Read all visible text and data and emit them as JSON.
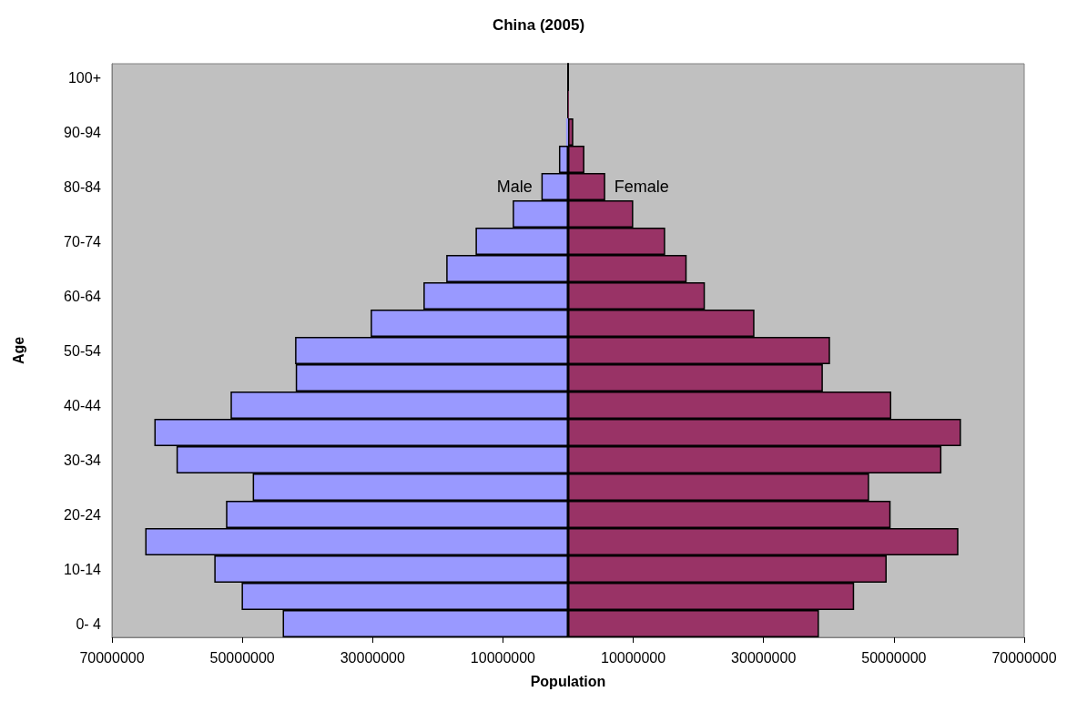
{
  "chart_data": {
    "type": "bar",
    "orientation": "horizontal",
    "title": "China (2005)",
    "xlabel": "Population",
    "ylabel": "Age",
    "categories": [
      "100+",
      null,
      "90-94",
      null,
      "80-84",
      null,
      "70-74",
      null,
      "60-64",
      null,
      "50-54",
      null,
      "40-44",
      null,
      "30-34",
      null,
      "20-24",
      null,
      "10-14",
      null,
      "0- 4"
    ],
    "series": [
      {
        "name": "Male",
        "color": "#9999ff",
        "values": [
          null,
          null,
          -300000,
          -1400000,
          -4100000,
          -8500000,
          -14200000,
          -18700000,
          -22200000,
          -30300000,
          -41900000,
          -41800000,
          -51800000,
          -63500000,
          -60100000,
          -48400000,
          -52500000,
          -64900000,
          -54300000,
          -50100000,
          -43800000
        ]
      },
      {
        "name": "Female",
        "color": "#993366",
        "values": [
          null,
          100000,
          800000,
          2500000,
          5700000,
          10000000,
          14900000,
          18200000,
          21000000,
          28600000,
          40200000,
          39100000,
          49600000,
          60300000,
          57300000,
          46200000,
          49500000,
          59900000,
          48900000,
          43900000,
          38500000
        ]
      }
    ],
    "xlim": [
      -70000000,
      70000000
    ],
    "xticks": [
      {
        "value": -70000000,
        "label": "70000000"
      },
      {
        "value": -50000000,
        "label": "50000000"
      },
      {
        "value": -30000000,
        "label": "30000000"
      },
      {
        "value": -10000000,
        "label": "10000000"
      },
      {
        "value": 10000000,
        "label": "10000000"
      },
      {
        "value": 30000000,
        "label": "30000000"
      },
      {
        "value": 50000000,
        "label": "50000000"
      },
      {
        "value": 70000000,
        "label": "70000000"
      }
    ],
    "stacked": true,
    "grid": false,
    "legend": false
  }
}
